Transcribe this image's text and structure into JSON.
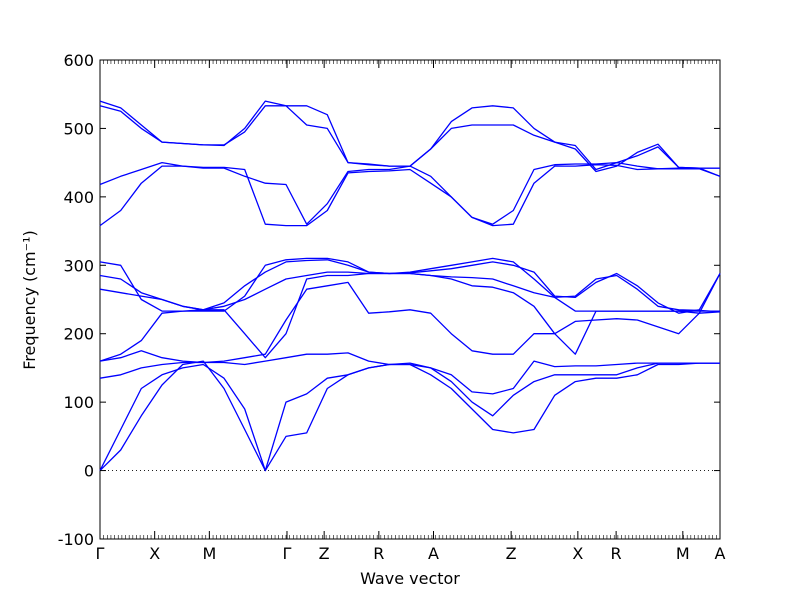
{
  "chart_data": {
    "type": "line",
    "title": "",
    "xlabel": "Wave vector",
    "ylabel": "Frequency (cm⁻¹)",
    "ylim": [
      -100,
      600
    ],
    "yticks": [
      -100,
      0,
      100,
      200,
      300,
      400,
      500,
      600
    ],
    "grid": false,
    "legend": "none",
    "zero_line": {
      "y": 0,
      "style": "dotted"
    },
    "line_color": "#0000ff",
    "xticks": [
      {
        "label": "Γ",
        "x": 0.0
      },
      {
        "label": "X",
        "x": 0.5
      },
      {
        "label": "M",
        "x": 1.0
      },
      {
        "label": "Γ",
        "x": 1.71
      },
      {
        "label": "Z",
        "x": 2.05
      },
      {
        "label": "R",
        "x": 2.55
      },
      {
        "label": "A",
        "x": 3.05
      },
      {
        "label": "Z",
        "x": 3.76
      },
      {
        "label": "X",
        "x": 4.37
      },
      {
        "label": "R",
        "x": 4.72
      },
      {
        "label": "M",
        "x": 5.33
      },
      {
        "label": "A",
        "x": 5.67
      }
    ],
    "series": [
      {
        "values": [
          0,
          30,
          80,
          125,
          155,
          160,
          120,
          60,
          0,
          50,
          55,
          120,
          140,
          150,
          155,
          155,
          140,
          120,
          90,
          60,
          55,
          60,
          110,
          130,
          135,
          135,
          140,
          155,
          155,
          157,
          157
        ]
      },
      {
        "values": [
          0,
          60,
          120,
          140,
          150,
          155,
          135,
          90,
          0,
          100,
          112,
          135,
          140,
          150,
          155,
          157,
          150,
          130,
          100,
          80,
          110,
          130,
          140,
          140,
          140,
          140,
          150,
          157,
          157,
          157,
          157
        ]
      },
      {
        "values": [
          135,
          140,
          150,
          155,
          158,
          158,
          158,
          155,
          160,
          165,
          170,
          170,
          172,
          160,
          155,
          155,
          150,
          140,
          115,
          112,
          120,
          160,
          152,
          153,
          153,
          155,
          157,
          157,
          157,
          157,
          157
        ]
      },
      {
        "values": [
          160,
          165,
          175,
          165,
          160,
          158,
          160,
          165,
          170,
          220,
          265,
          270,
          275,
          230,
          232,
          235,
          230,
          200,
          175,
          170,
          170,
          200,
          200,
          218,
          220,
          222,
          220,
          210,
          200,
          230,
          232
        ]
      },
      {
        "values": [
          160,
          170,
          190,
          230,
          233,
          235,
          235,
          200,
          165,
          200,
          280,
          285,
          285,
          288,
          288,
          288,
          285,
          280,
          270,
          268,
          260,
          240,
          200,
          170,
          233,
          233,
          233,
          233,
          233,
          233,
          233
        ]
      },
      {
        "values": [
          265,
          260,
          255,
          250,
          240,
          235,
          240,
          250,
          265,
          280,
          285,
          290,
          290,
          288,
          288,
          288,
          285,
          283,
          282,
          280,
          270,
          260,
          253,
          255,
          280,
          285,
          265,
          240,
          235,
          234,
          232
        ]
      },
      {
        "values": [
          285,
          280,
          260,
          250,
          240,
          235,
          245,
          270,
          290,
          305,
          307,
          308,
          300,
          290,
          288,
          289,
          292,
          295,
          300,
          305,
          300,
          290,
          255,
          253,
          275,
          288,
          270,
          245,
          230,
          235,
          288
        ]
      },
      {
        "values": [
          305,
          300,
          250,
          233,
          233,
          233,
          233,
          255,
          300,
          308,
          310,
          310,
          305,
          290,
          288,
          290,
          295,
          300,
          305,
          310,
          305,
          280,
          253,
          233,
          233,
          233,
          233,
          233,
          233,
          230,
          288
        ]
      },
      {
        "values": [
          358,
          380,
          420,
          445,
          445,
          443,
          443,
          440,
          360,
          358,
          358,
          380,
          435,
          437,
          438,
          440,
          420,
          400,
          370,
          358,
          360,
          420,
          445,
          445,
          447,
          446,
          440,
          441,
          442,
          442,
          430
        ]
      },
      {
        "values": [
          418,
          430,
          440,
          450,
          445,
          442,
          442,
          430,
          420,
          418,
          360,
          390,
          437,
          440,
          440,
          445,
          430,
          400,
          370,
          360,
          380,
          440,
          447,
          448,
          448,
          450,
          445,
          441,
          441,
          441,
          430
        ]
      },
      {
        "values": [
          533,
          525,
          500,
          480,
          478,
          476,
          476,
          495,
          533,
          533,
          505,
          500,
          450,
          447,
          445,
          445,
          470,
          500,
          505,
          505,
          505,
          490,
          480,
          475,
          440,
          450,
          460,
          473,
          443,
          442,
          442
        ]
      },
      {
        "values": [
          540,
          530,
          505,
          480,
          478,
          476,
          475,
          500,
          540,
          533,
          533,
          520,
          450,
          448,
          445,
          445,
          470,
          510,
          530,
          533,
          530,
          500,
          480,
          470,
          437,
          445,
          465,
          477,
          443,
          442,
          442
        ]
      }
    ]
  }
}
